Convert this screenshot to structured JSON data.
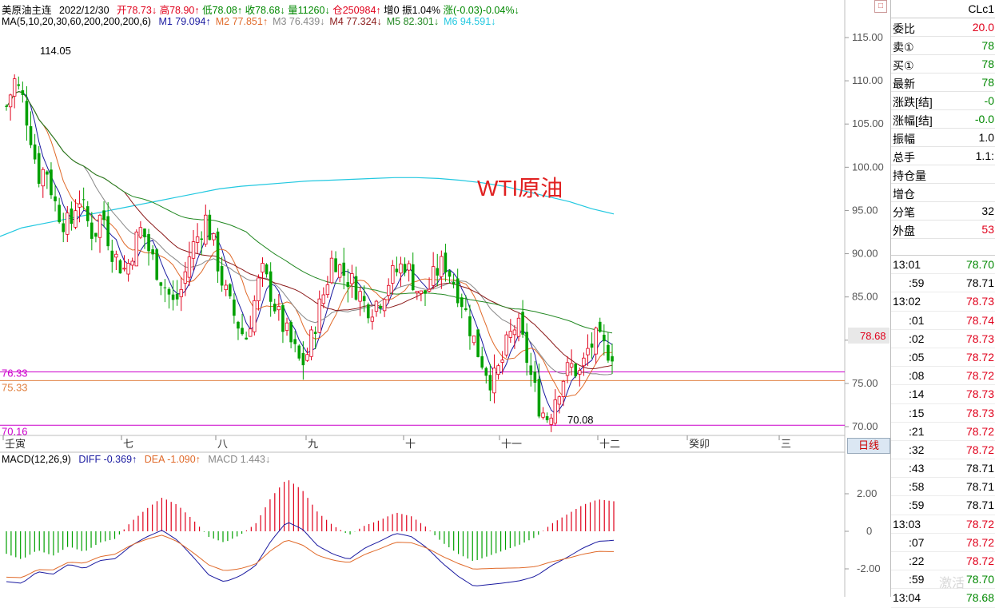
{
  "header": {
    "title": "美原油主连",
    "date": "2022/12/30",
    "open": "开78.73↓",
    "high": "高78.90↑",
    "low": "低78.08↑",
    "close": "收78.68↓",
    "volume": "量11260↓",
    "position": "仓250984↑",
    "increase": "增0",
    "amplitude": "振1.04%",
    "change": "涨(-0.03)-0.04%↓"
  },
  "ma_bar": {
    "label": "MA(5,10,20,30,60,200,200,200,6)",
    "items": [
      {
        "text": "M1 79.094↑",
        "color": "#1a1aa0"
      },
      {
        "text": "M2 77.851↑",
        "color": "#e06a2a"
      },
      {
        "text": "M3 76.439↓",
        "color": "#888888"
      },
      {
        "text": "M4 77.324↓",
        "color": "#8b1a1a"
      },
      {
        "text": "M5 82.301↓",
        "color": "#228822"
      },
      {
        "text": "M6 94.591↓",
        "color": "#22c8e0"
      }
    ]
  },
  "macd_bar": {
    "label": "MACD(12,26,9)",
    "diff": "DIFF -0.369↑",
    "dea": "DEA -1.090↑",
    "macd": "MACD 1.443↓"
  },
  "chart_data": {
    "type": "candlestick",
    "annotation": "WTI原油",
    "y_ticks": [
      "115.00",
      "110.00",
      "105.00",
      "100.00",
      "95.00",
      "90.00",
      "85.00",
      "80.00",
      "75.00",
      "70.00"
    ],
    "last_price": "78.68",
    "high_label": "114.05",
    "low_label": "70.08",
    "level_lines": [
      {
        "value": 76.33,
        "label": "76.33",
        "color": "#cc00cc"
      },
      {
        "value": 75.33,
        "label": "75.33",
        "color": "#e08040"
      },
      {
        "value": 70.16,
        "label": "70.16",
        "color": "#cc00cc"
      }
    ],
    "x_labels": [
      "壬寅",
      "七",
      "八",
      "九",
      "十",
      "十一",
      "十二",
      "癸卯",
      "三"
    ],
    "macd_ticks": [
      "2.00",
      "0",
      "-2.00"
    ],
    "close_path": [
      107,
      110,
      108,
      104,
      99,
      100,
      96,
      94,
      93,
      97,
      94,
      92,
      95,
      91,
      89,
      88,
      91,
      93,
      90,
      88,
      86,
      84,
      86,
      90,
      92,
      94,
      91,
      87,
      84,
      82,
      80,
      84,
      88,
      86,
      83,
      81,
      79,
      77,
      79,
      83,
      86,
      90,
      88,
      87,
      86,
      84,
      84,
      85,
      87,
      88,
      89,
      87,
      85,
      86,
      88,
      89,
      87,
      85,
      82,
      79,
      77,
      75,
      77,
      80,
      82,
      79,
      75,
      72,
      71,
      74,
      76,
      77,
      76,
      79,
      80,
      79,
      78.68
    ],
    "m6_path": [
      92,
      93,
      93.5,
      94,
      94.5,
      95,
      95.5,
      96,
      96.5,
      97,
      97.5,
      97.8,
      98,
      98.2,
      98.4,
      98.5,
      98.6,
      98.7,
      98.8,
      98.8,
      98.7,
      98.5,
      98.2,
      97.8,
      97.2,
      96.6,
      96,
      95.2,
      94.6
    ],
    "macd_hist": [
      -1.2,
      -1.5,
      -1.0,
      -1.3,
      -0.8,
      -1.1,
      -0.6,
      -0.4,
      0.5,
      1.2,
      1.8,
      1.4,
      0.6,
      -0.3,
      -0.6,
      -0.2,
      0.4,
      1.8,
      2.8,
      2.2,
      1.0,
      0.3,
      -0.2,
      0.3,
      0.6,
      1.0,
      0.8,
      0.2,
      -0.6,
      -1.2,
      -1.6,
      -1.3,
      -1.0,
      -0.7,
      -0.3,
      0.4,
      0.9,
      1.4,
      1.7,
      1.6
    ]
  },
  "quote_panel": {
    "symbol": "CLc1",
    "rows": [
      {
        "k": "委比",
        "v": "20.0",
        "c": "red"
      },
      {
        "k": "卖①",
        "v": "78",
        "c": "grn"
      },
      {
        "k": "买①",
        "v": "78",
        "c": "grn"
      },
      {
        "k": "最新",
        "v": "78",
        "c": "grn"
      },
      {
        "k": "涨跌[结]",
        "v": "-0",
        "c": "grn"
      },
      {
        "k": "涨幅[结]",
        "v": "-0.0",
        "c": "grn"
      },
      {
        "k": "振幅",
        "v": "1.0",
        "c": "black"
      },
      {
        "k": "总手",
        "v": "1.1:",
        "c": "black"
      },
      {
        "k": "持仓量",
        "v": "",
        "c": "black"
      },
      {
        "k": "增仓",
        "v": "",
        "c": "black"
      },
      {
        "k": "分笔",
        "v": "32",
        "c": "black"
      },
      {
        "k": "外盘",
        "v": "53",
        "c": "red"
      }
    ],
    "ticks": [
      {
        "t": "13:01",
        "p": "78.70",
        "c": "grn"
      },
      {
        "t": ":59",
        "p": "78.71",
        "c": "black"
      },
      {
        "t": "13:02",
        "p": "78.73",
        "c": "red"
      },
      {
        "t": ":01",
        "p": "78.74",
        "c": "red"
      },
      {
        "t": ":02",
        "p": "78.73",
        "c": "red"
      },
      {
        "t": ":05",
        "p": "78.72",
        "c": "red"
      },
      {
        "t": ":08",
        "p": "78.72",
        "c": "red"
      },
      {
        "t": ":14",
        "p": "78.73",
        "c": "red"
      },
      {
        "t": ":15",
        "p": "78.73",
        "c": "red"
      },
      {
        "t": ":21",
        "p": "78.72",
        "c": "red"
      },
      {
        "t": ":32",
        "p": "78.72",
        "c": "red"
      },
      {
        "t": ":43",
        "p": "78.71",
        "c": "black"
      },
      {
        "t": ":58",
        "p": "78.71",
        "c": "black"
      },
      {
        "t": ":59",
        "p": "78.71",
        "c": "black"
      },
      {
        "t": "13:03",
        "p": "78.72",
        "c": "red"
      },
      {
        "t": ":07",
        "p": "78.72",
        "c": "red"
      },
      {
        "t": ":22",
        "p": "78.72",
        "c": "red"
      },
      {
        "t": ":59",
        "p": "78.70",
        "c": "grn"
      },
      {
        "t": "13:04",
        "p": "78.68",
        "c": "grn"
      }
    ]
  },
  "bottom_tab": "日线",
  "watermark": "激活"
}
